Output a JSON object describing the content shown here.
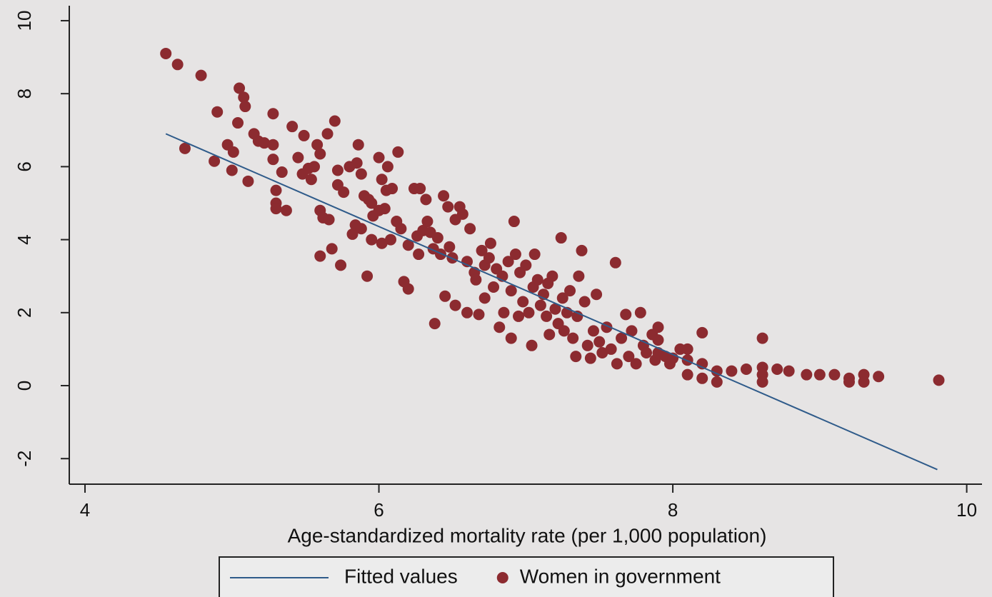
{
  "chart_data": {
    "type": "scatter",
    "x_label": "Age-standardized mortality rate (per 1,000 population)",
    "xlim": [
      3.893,
      10.104
    ],
    "ylim": [
      -2.7,
      10.41
    ],
    "xticks": [
      4,
      6,
      8,
      10
    ],
    "yticks": [
      -2,
      0,
      2,
      4,
      6,
      8,
      10
    ],
    "grid": false,
    "legend": "bottom",
    "series": [
      {
        "name": "Fitted values",
        "type": "line",
        "color": "#2f5b8a",
        "x": [
          4.55,
          9.8
        ],
        "values": [
          6.9,
          -2.3
        ]
      },
      {
        "name": "Women in government",
        "type": "scatter",
        "color": "#8c2b30",
        "x": [
          4.55,
          4.63,
          4.79,
          4.68,
          4.9,
          4.88,
          4.97,
          5.01,
          5.0,
          5.04,
          5.05,
          5.08,
          5.09,
          5.11,
          5.15,
          5.18,
          5.22,
          5.28,
          5.28,
          5.28,
          5.3,
          5.3,
          5.3,
          5.34,
          5.37,
          5.41,
          5.45,
          5.48,
          5.49,
          5.52,
          5.54,
          5.56,
          5.58,
          5.6,
          5.6,
          5.6,
          5.62,
          5.65,
          5.66,
          5.68,
          5.7,
          5.72,
          5.72,
          5.74,
          5.76,
          5.8,
          5.82,
          5.84,
          5.85,
          5.86,
          5.88,
          5.88,
          5.9,
          5.93,
          5.92,
          5.95,
          5.95,
          5.96,
          6.0,
          6.0,
          6.02,
          6.02,
          6.04,
          6.05,
          6.06,
          6.08,
          6.09,
          6.12,
          6.13,
          6.15,
          6.17,
          6.2,
          6.2,
          6.24,
          6.26,
          6.27,
          6.28,
          6.3,
          6.32,
          6.33,
          6.35,
          6.37,
          6.38,
          6.4,
          6.42,
          6.44,
          6.45,
          6.47,
          6.48,
          6.5,
          6.52,
          6.52,
          6.55,
          6.57,
          6.6,
          6.6,
          6.62,
          6.65,
          6.66,
          6.68,
          6.7,
          6.72,
          6.72,
          6.75,
          6.76,
          6.78,
          6.8,
          6.82,
          6.84,
          6.85,
          6.88,
          6.9,
          6.9,
          6.92,
          6.93,
          6.95,
          6.96,
          6.98,
          7.0,
          7.02,
          7.04,
          7.05,
          7.06,
          7.08,
          7.1,
          7.12,
          7.14,
          7.15,
          7.16,
          7.18,
          7.2,
          7.22,
          7.24,
          7.25,
          7.26,
          7.28,
          7.3,
          7.32,
          7.34,
          7.35,
          7.36,
          7.38,
          7.4,
          7.42,
          7.44,
          7.46,
          7.48,
          7.5,
          7.52,
          7.55,
          7.58,
          7.61,
          7.62,
          7.65,
          7.68,
          7.7,
          7.72,
          7.75,
          7.78,
          7.8,
          7.82,
          7.86,
          7.88,
          7.9,
          7.9,
          7.9,
          7.95,
          7.98,
          8.0,
          8.05,
          8.1,
          8.1,
          8.1,
          8.2,
          8.2,
          8.2,
          8.3,
          8.3,
          8.4,
          8.5,
          8.61,
          8.61,
          8.61,
          8.61,
          8.71,
          8.79,
          8.91,
          9.0,
          9.1,
          9.2,
          9.2,
          9.3,
          9.3,
          9.4,
          9.81
        ],
        "values": [
          9.1,
          8.8,
          8.5,
          6.5,
          7.5,
          6.15,
          6.6,
          6.4,
          5.9,
          7.2,
          8.15,
          7.9,
          7.65,
          5.6,
          6.9,
          6.7,
          6.65,
          7.45,
          6.6,
          6.2,
          5.35,
          5.0,
          4.85,
          5.85,
          4.8,
          7.1,
          6.25,
          5.8,
          6.85,
          5.95,
          5.65,
          6.0,
          6.6,
          6.35,
          4.8,
          3.55,
          4.6,
          6.9,
          4.55,
          3.75,
          7.25,
          5.9,
          5.5,
          3.3,
          5.3,
          6.0,
          4.15,
          4.4,
          6.1,
          6.6,
          5.8,
          4.3,
          5.2,
          5.1,
          3.0,
          4.0,
          5.0,
          4.65,
          4.8,
          6.25,
          3.9,
          5.65,
          4.85,
          5.35,
          6.0,
          4.0,
          5.4,
          4.5,
          6.4,
          4.3,
          2.85,
          3.85,
          2.65,
          5.4,
          4.1,
          3.6,
          5.4,
          4.25,
          5.1,
          4.5,
          4.2,
          3.75,
          1.7,
          4.05,
          3.6,
          5.2,
          2.45,
          4.9,
          3.8,
          3.5,
          4.55,
          2.2,
          4.9,
          4.7,
          3.4,
          2.0,
          4.3,
          3.1,
          2.9,
          1.95,
          3.7,
          3.3,
          2.4,
          3.5,
          3.9,
          2.7,
          3.2,
          1.6,
          3.0,
          2.0,
          3.4,
          1.3,
          2.6,
          4.5,
          3.6,
          1.9,
          3.1,
          2.3,
          3.3,
          2.0,
          1.1,
          2.7,
          3.6,
          2.9,
          2.2,
          2.5,
          1.9,
          2.8,
          1.4,
          3.0,
          2.1,
          1.7,
          4.05,
          2.4,
          1.5,
          2.0,
          2.6,
          1.3,
          0.8,
          1.9,
          3.0,
          3.7,
          2.3,
          1.1,
          0.75,
          1.5,
          2.5,
          1.2,
          0.9,
          1.6,
          1.0,
          3.37,
          0.6,
          1.3,
          1.95,
          0.8,
          1.5,
          0.6,
          2.0,
          1.1,
          0.9,
          1.4,
          0.7,
          1.6,
          1.25,
          0.9,
          0.8,
          0.6,
          0.75,
          1.0,
          1.0,
          0.7,
          0.3,
          1.45,
          0.6,
          0.2,
          0.4,
          0.1,
          0.4,
          0.45,
          1.3,
          0.5,
          0.3,
          0.1,
          0.45,
          0.4,
          0.3,
          0.3,
          0.3,
          0.2,
          0.1,
          0.3,
          0.1,
          0.25,
          0.15
        ]
      }
    ]
  }
}
